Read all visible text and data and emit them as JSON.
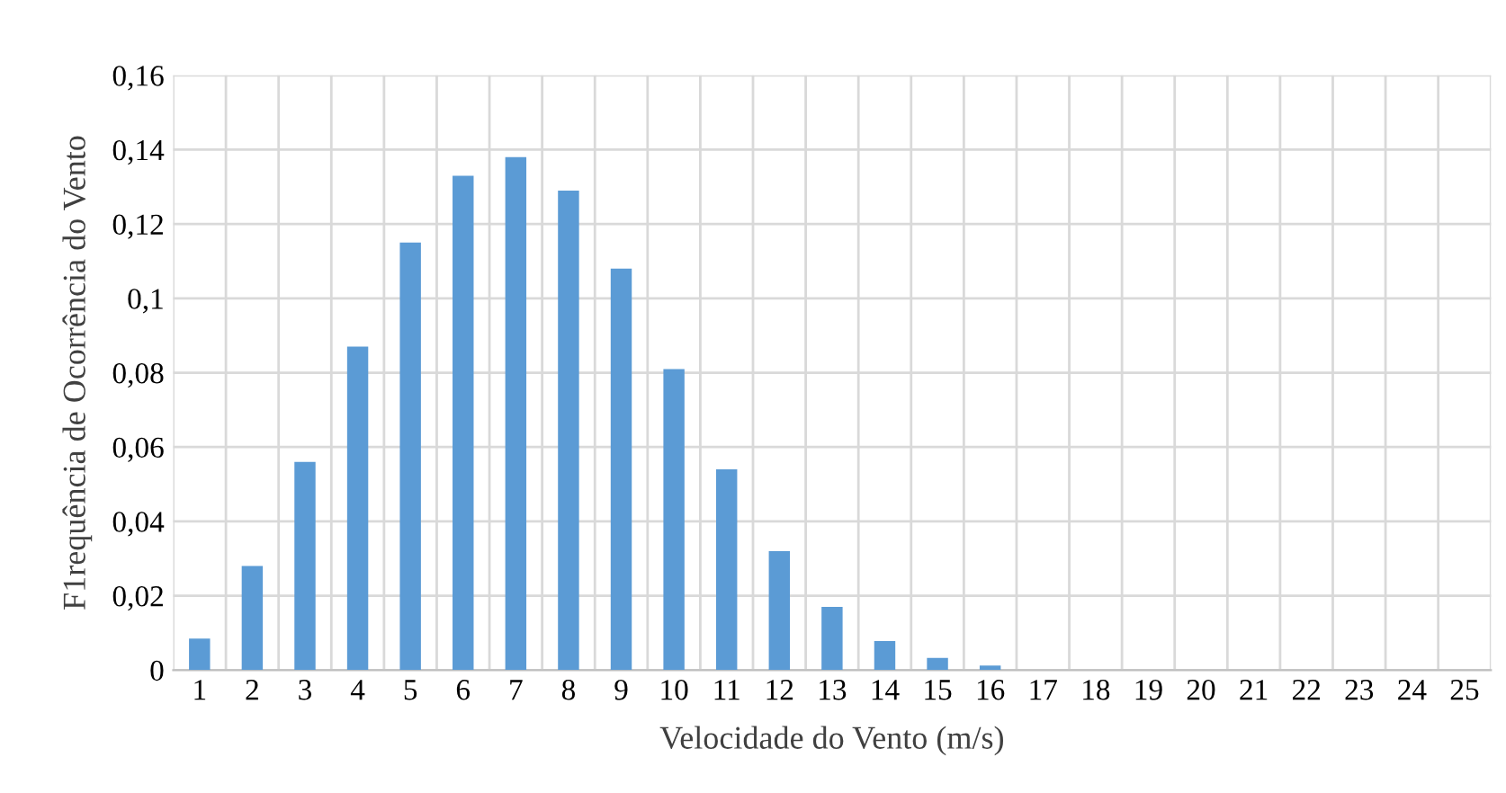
{
  "chart_data": {
    "type": "bar",
    "xlabel": "Velocidade do Vento (m/s)",
    "ylabel": "F1requência de Ocorrência do Vento",
    "categories": [
      "1",
      "2",
      "3",
      "4",
      "5",
      "6",
      "7",
      "8",
      "9",
      "10",
      "11",
      "12",
      "13",
      "14",
      "15",
      "16",
      "17",
      "18",
      "19",
      "20",
      "21",
      "22",
      "23",
      "24",
      "25"
    ],
    "values": [
      0.0085,
      0.028,
      0.056,
      0.087,
      0.115,
      0.133,
      0.138,
      0.129,
      0.108,
      0.081,
      0.054,
      0.032,
      0.017,
      0.0078,
      0.0033,
      0.0012,
      0,
      0,
      0,
      0,
      0,
      0,
      0,
      0,
      0
    ],
    "color": "#5b9bd5",
    "ylim": [
      0,
      0.16
    ],
    "yticks": [
      0,
      {
        "value": 0.02,
        "label": "0,02"
      },
      {
        "value": 0.04,
        "label": "0,04"
      },
      {
        "value": 0.06,
        "label": "0,06"
      },
      {
        "value": 0.08,
        "label": "0,08"
      },
      {
        "value": 0.1,
        "label": "0,1"
      },
      {
        "value": 0.12,
        "label": "0,12"
      },
      {
        "value": 0.14,
        "label": "0,14"
      },
      {
        "value": 0.16,
        "label": "0,16"
      }
    ],
    "grid": true
  }
}
